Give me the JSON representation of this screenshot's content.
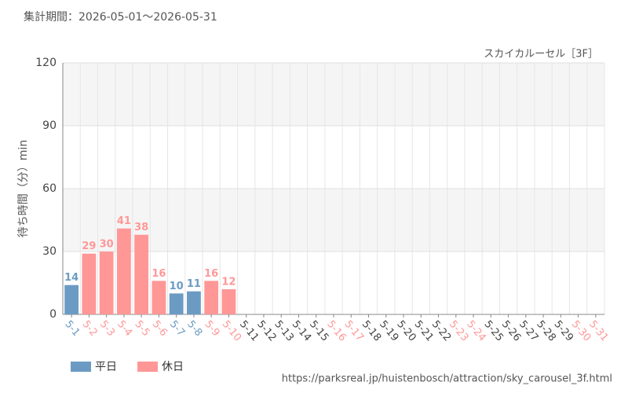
{
  "chart_data": {
    "type": "bar",
    "header": "集計期間：2026-05-01～2026-05-31",
    "title": "スカイカルーセル［3F］",
    "y_label": "待ち時間（分）min",
    "source": "https://parksreal.jp/huistenbosch/attraction/sky_carousel_3f.html",
    "categories": [
      "5-1",
      "5-2",
      "5-3",
      "5-4",
      "5-5",
      "5-6",
      "5-7",
      "5-8",
      "5-9",
      "5-10",
      "5-11",
      "5-12",
      "5-13",
      "5-14",
      "5-15",
      "5-16",
      "5-17",
      "5-18",
      "5-19",
      "5-20",
      "5-21",
      "5-22",
      "5-23",
      "5-24",
      "5-25",
      "5-26",
      "5-27",
      "5-28",
      "5-29",
      "5-30",
      "5-31"
    ],
    "values": [
      14,
      29,
      30,
      41,
      38,
      16,
      10,
      11,
      16,
      12,
      null,
      null,
      null,
      null,
      null,
      null,
      null,
      null,
      null,
      null,
      null,
      null,
      null,
      null,
      null,
      null,
      null,
      null,
      null,
      null,
      null
    ],
    "category_colors": [
      "#6b9bc3",
      "#ff9797",
      "#ff9797",
      "#ff9797",
      "#ff9797",
      "#ff9797",
      "#6b9bc3",
      "#6b9bc3",
      "#ff9797",
      "#ff9797",
      "#444444",
      "#444444",
      "#444444",
      "#444444",
      "#444444",
      "#ff9797",
      "#ff9797",
      "#444444",
      "#444444",
      "#444444",
      "#444444",
      "#444444",
      "#ff9797",
      "#ff9797",
      "#444444",
      "#444444",
      "#444444",
      "#444444",
      "#444444",
      "#ff9797",
      "#ff9797"
    ],
    "legend": [
      {
        "name": "平日",
        "color": "#6b9bc3"
      },
      {
        "name": "休日",
        "color": "#ff9797"
      }
    ],
    "ylim": [
      0,
      120
    ],
    "yticks": [
      0,
      30,
      60,
      90,
      120
    ],
    "grid": true
  }
}
